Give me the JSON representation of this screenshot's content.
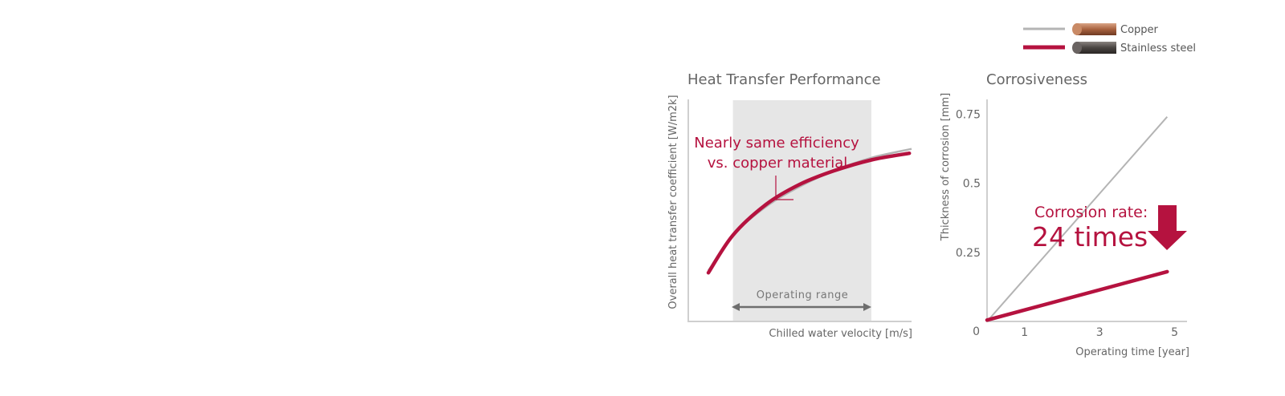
{
  "legend": {
    "items": [
      {
        "label": "Copper",
        "color": "#b4b4b4",
        "swatch": "copper-tube-icon"
      },
      {
        "label": "Stainless steel",
        "color": "#b5123f",
        "swatch": "steel-tube-icon"
      }
    ]
  },
  "colors": {
    "accent": "#b5123f",
    "copper_line": "#b4b4b4",
    "axis": "#cfcfcf",
    "text": "#666666",
    "band": "#e6e6e6",
    "arrow": "#6e6e6e"
  },
  "chart_data": [
    {
      "type": "line",
      "title": "Heat Transfer Performance",
      "xlabel": "Chilled water velocity [m/s]",
      "ylabel": "Overall heat transfer coefficient [W/m2k]",
      "annotation": {
        "line1": "Nearly same efficiency",
        "line2": "vs. copper material"
      },
      "band_label": "Operating range",
      "band": [
        0.2,
        0.82
      ],
      "xlim": [
        0,
        1
      ],
      "ylim": [
        0,
        1
      ],
      "series": [
        {
          "name": "Copper",
          "x": [
            0.09,
            0.2,
            0.35,
            0.5,
            0.65,
            0.82,
            1.0
          ],
          "y": [
            0.23,
            0.39,
            0.52,
            0.61,
            0.68,
            0.74,
            0.78
          ]
        },
        {
          "name": "Stainless steel",
          "x": [
            0.09,
            0.2,
            0.35,
            0.5,
            0.65,
            0.82,
            0.99
          ],
          "y": [
            0.22,
            0.39,
            0.53,
            0.62,
            0.68,
            0.73,
            0.76
          ]
        }
      ]
    },
    {
      "type": "line",
      "title": "Corrosiveness",
      "xlabel": "Operating time [year]",
      "ylabel": "Thickness of corrosion [mm]",
      "yticks": [
        "0",
        "0.25",
        "0.5",
        "0.75"
      ],
      "xticks": [
        "1",
        "3",
        "5"
      ],
      "xlim": [
        0,
        5.5
      ],
      "ylim": [
        0,
        0.8
      ],
      "annotation": {
        "line1": "Corrosion rate:",
        "line2": "24 times"
      },
      "series": [
        {
          "name": "Copper",
          "x": [
            0,
            4.8
          ],
          "y": [
            0,
            0.74
          ]
        },
        {
          "name": "Stainless steel",
          "x": [
            0,
            4.8
          ],
          "y": [
            0.005,
            0.18
          ]
        }
      ]
    }
  ]
}
